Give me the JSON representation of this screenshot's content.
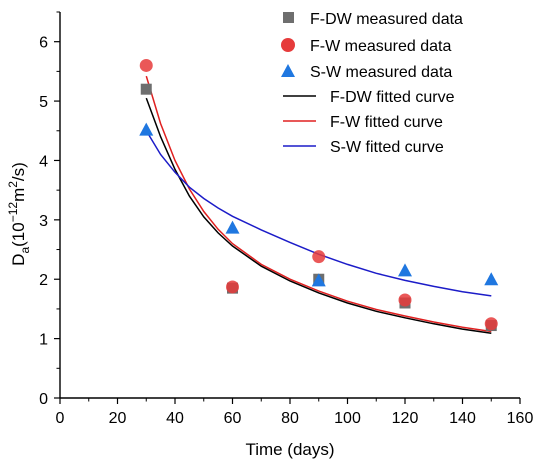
{
  "chart_data": {
    "type": "scatter",
    "xlabel": "Time (days)",
    "ylabel": {
      "main": "D",
      "sub": "a",
      "open": "(10",
      "exp1": "−12",
      "mid": "m",
      "exp2": "2",
      "close": "/s)"
    },
    "xlim": [
      0,
      160
    ],
    "ylim": [
      0,
      6.5
    ],
    "xticks": [
      0,
      20,
      40,
      60,
      80,
      100,
      120,
      140,
      160
    ],
    "yticks": [
      0,
      1,
      2,
      3,
      4,
      5,
      6
    ],
    "legend_position": "top-right",
    "grid": false,
    "measured": [
      {
        "name": "F-DW  measured data",
        "marker": "square",
        "color": "#6e6e6e",
        "x": [
          30,
          60,
          90,
          120,
          150
        ],
        "y": [
          5.2,
          1.85,
          2.0,
          1.6,
          1.22
        ]
      },
      {
        "name": "F-W  measured data",
        "marker": "circle",
        "color": "#e63b3b",
        "x": [
          30,
          60,
          90,
          120,
          150
        ],
        "y": [
          5.6,
          1.87,
          2.38,
          1.65,
          1.25
        ]
      },
      {
        "name": "S-W  measured data",
        "marker": "triangle",
        "color": "#1f77e0",
        "x": [
          30,
          60,
          90,
          120,
          150
        ],
        "y": [
          4.52,
          2.87,
          1.98,
          2.15,
          2.0
        ]
      }
    ],
    "fitted": [
      {
        "name": "F-DW  fitted curve",
        "color": "#000000",
        "x": [
          30,
          35,
          40,
          45,
          50,
          55,
          60,
          70,
          80,
          90,
          100,
          110,
          120,
          130,
          140,
          150
        ],
        "y": [
          5.05,
          4.4,
          3.85,
          3.4,
          3.05,
          2.78,
          2.56,
          2.22,
          1.97,
          1.77,
          1.6,
          1.46,
          1.35,
          1.25,
          1.16,
          1.09
        ]
      },
      {
        "name": "F-W  fitted curve",
        "color": "#e02020",
        "x": [
          30,
          35,
          40,
          45,
          50,
          55,
          60,
          70,
          80,
          90,
          100,
          110,
          120,
          130,
          140,
          150
        ],
        "y": [
          5.42,
          4.62,
          4.0,
          3.52,
          3.14,
          2.84,
          2.6,
          2.25,
          2.0,
          1.8,
          1.63,
          1.49,
          1.38,
          1.28,
          1.19,
          1.12
        ]
      },
      {
        "name": "S-W  fitted curve",
        "color": "#1c1cc8",
        "x": [
          30,
          35,
          40,
          45,
          50,
          55,
          60,
          70,
          80,
          90,
          100,
          110,
          120,
          130,
          140,
          150
        ],
        "y": [
          4.5,
          4.1,
          3.8,
          3.55,
          3.36,
          3.2,
          3.06,
          2.83,
          2.62,
          2.42,
          2.25,
          2.1,
          1.98,
          1.88,
          1.79,
          1.72
        ]
      }
    ]
  }
}
